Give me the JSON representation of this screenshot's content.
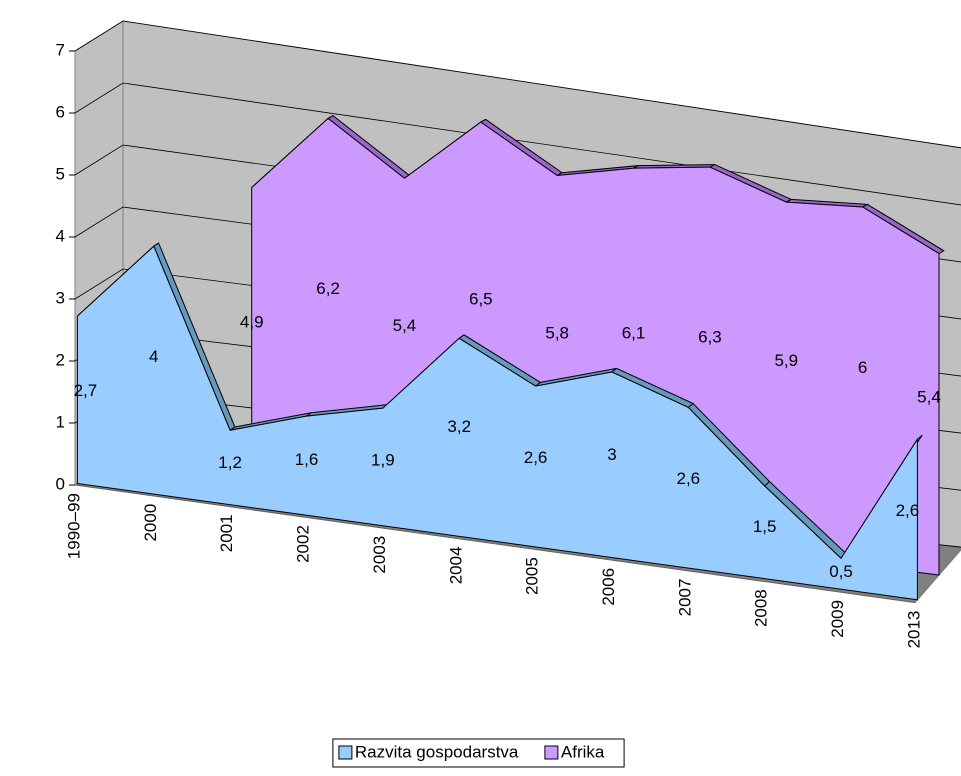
{
  "chart_data": {
    "type": "area3d",
    "categories": [
      "1990–99",
      "2000",
      "2001",
      "2002",
      "2003",
      "2004",
      "2005",
      "2006",
      "2007",
      "2008",
      "2009",
      "2013"
    ],
    "series": [
      {
        "name": "Razvita gospodarstva",
        "color": "#99ccff",
        "values": [
          2.7,
          4,
          1.2,
          1.6,
          1.9,
          3.2,
          2.6,
          3,
          2.6,
          1.5,
          0.5,
          2.6
        ],
        "value_labels": [
          "2,7",
          "4",
          "1,2",
          "1,6",
          "1,9",
          "3,2",
          "2,6",
          "3",
          "2,6",
          "1,5",
          "0,5",
          "2,6"
        ]
      },
      {
        "name": "Afrika",
        "color": "#cc99ff",
        "values": [
          null,
          null,
          4.9,
          6.2,
          5.4,
          6.5,
          5.8,
          6.1,
          6.3,
          5.9,
          6,
          5.4
        ],
        "value_labels": [
          null,
          null,
          "4,9",
          "6,2",
          "5,4",
          "6,5",
          "5,8",
          "6,1",
          "6,3",
          "5,9",
          "6",
          "5,4"
        ]
      }
    ],
    "ylim": [
      0,
      7
    ],
    "yticks": [
      0,
      1,
      2,
      3,
      4,
      5,
      6,
      7
    ],
    "grid": true,
    "legend": "bottom"
  }
}
